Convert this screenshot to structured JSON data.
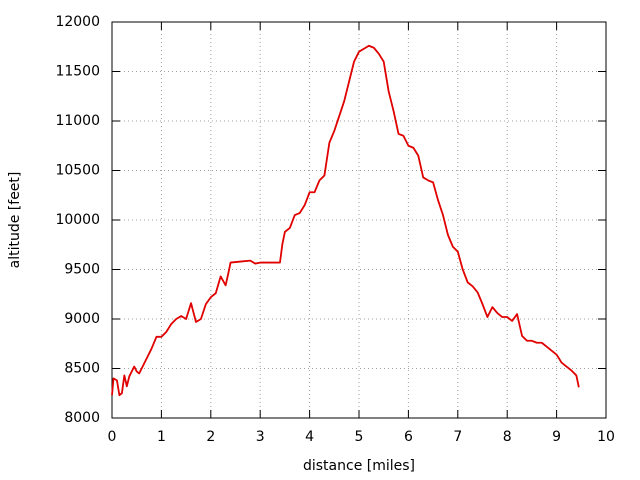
{
  "chart_data": {
    "type": "line",
    "xlabel": "distance [miles]",
    "ylabel": "altitude [feet]",
    "xlim": [
      0,
      10
    ],
    "ylim": [
      8000,
      12000
    ],
    "xticks": [
      0,
      1,
      2,
      3,
      4,
      5,
      6,
      7,
      8,
      9,
      10
    ],
    "yticks": [
      8000,
      8500,
      9000,
      9500,
      10000,
      10500,
      11000,
      11500,
      12000
    ],
    "grid": true,
    "series": [
      {
        "color": "#e00000",
        "x": [
          0,
          0.03,
          0.1,
          0.15,
          0.2,
          0.25,
          0.3,
          0.35,
          0.45,
          0.5,
          0.55,
          0.6,
          0.7,
          0.8,
          0.9,
          1.0,
          1.1,
          1.2,
          1.3,
          1.4,
          1.5,
          1.6,
          1.7,
          1.8,
          1.9,
          2.0,
          2.1,
          2.2,
          2.3,
          2.35,
          2.4,
          2.6,
          2.8,
          2.9,
          3.0,
          3.4,
          3.45,
          3.5,
          3.6,
          3.7,
          3.8,
          3.9,
          4.0,
          4.1,
          4.2,
          4.3,
          4.4,
          4.5,
          4.6,
          4.7,
          4.8,
          4.9,
          5.0,
          5.1,
          5.2,
          5.3,
          5.4,
          5.5,
          5.6,
          5.7,
          5.8,
          5.9,
          6.0,
          6.1,
          6.2,
          6.3,
          6.4,
          6.5,
          6.6,
          6.7,
          6.8,
          6.9,
          7.0,
          7.1,
          7.2,
          7.3,
          7.4,
          7.5,
          7.6,
          7.7,
          7.8,
          7.9,
          8.0,
          8.1,
          8.2,
          8.3,
          8.4,
          8.5,
          8.6,
          8.7,
          8.8,
          8.9,
          9.0,
          9.1,
          9.2,
          9.3,
          9.4,
          9.45
        ],
        "values": [
          8230,
          8400,
          8380,
          8230,
          8250,
          8430,
          8320,
          8420,
          8520,
          8470,
          8450,
          8500,
          8600,
          8700,
          8820,
          8820,
          8870,
          8950,
          9000,
          9030,
          9000,
          9160,
          8970,
          9000,
          9150,
          9220,
          9260,
          9430,
          9340,
          9450,
          9570,
          9580,
          9590,
          9560,
          9570,
          9570,
          9760,
          9880,
          9920,
          10050,
          10070,
          10150,
          10280,
          10280,
          10400,
          10450,
          10780,
          10900,
          11050,
          11200,
          11400,
          11600,
          11700,
          11730,
          11760,
          11740,
          11680,
          11600,
          11300,
          11100,
          10870,
          10850,
          10750,
          10730,
          10650,
          10430,
          10400,
          10380,
          10200,
          10050,
          9850,
          9730,
          9680,
          9500,
          9370,
          9330,
          9270,
          9150,
          9020,
          9120,
          9060,
          9020,
          9020,
          8980,
          9050,
          8830,
          8780,
          8780,
          8760,
          8760,
          8720,
          8680,
          8640,
          8560,
          8520,
          8480,
          8430,
          8310
        ]
      }
    ]
  }
}
